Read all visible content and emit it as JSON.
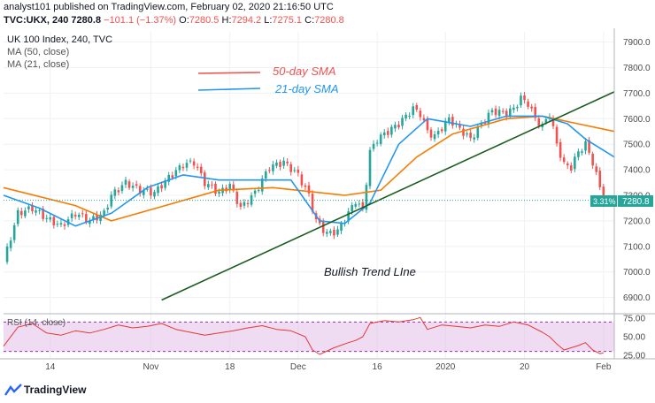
{
  "header": {
    "published": "analyst101 published on TradingView.com, February 02, 2020 21:16:50 UTC",
    "symbol": "TVC:UKX, 240",
    "last": "7280.8",
    "change": "−101.1 (−1.37%)",
    "o_label": "O:",
    "o_val": "7280.5",
    "h_label": "H:",
    "h_val": "7294.2",
    "l_label": "L:",
    "l_val": "7275.1",
    "c_label": "C:",
    "c_val": "7280.8"
  },
  "legend": {
    "title": "UK 100 Index, 240, TVC",
    "ma50": "MA (50, close)",
    "ma21": "MA (21, close)"
  },
  "annotations": {
    "sma50_label": "50-day SMA",
    "sma21_label": "21-day SMA",
    "trend_label": "Bullish Trend LIne",
    "price_badge": "7280.8",
    "pct_badge": "3.31%"
  },
  "rsi": {
    "label": "RSI (14, close)"
  },
  "footer": {
    "brand": "TradingView"
  },
  "colors": {
    "candle_up": "#26a69a",
    "candle_down": "#ef5350",
    "ma50": "#f57c00",
    "ma21": "#2196f3",
    "trend": "#1b5e20",
    "rsi_line": "#e53935",
    "rsi_band": "#e1bee7",
    "badge": "#26a69a"
  },
  "chart_data": {
    "type": "candlestick",
    "title": "UK 100 Index, 240, TVC",
    "x_ticks": [
      "14",
      "Nov",
      "18",
      "Dec",
      "16",
      "2020",
      "20",
      "Feb"
    ],
    "y_ticks": [
      6900,
      7000,
      7100,
      7200,
      7300,
      7400,
      7500,
      7600,
      7700,
      7800,
      7900
    ],
    "ylim": [
      6840,
      7940
    ],
    "rsi_ticks": [
      "25.00",
      "50.00",
      "75.00"
    ],
    "rsi_range": [
      20,
      80
    ],
    "close_path": [
      [
        0,
        7040
      ],
      [
        4,
        7230
      ],
      [
        8,
        7250
      ],
      [
        12,
        7210
      ],
      [
        16,
        7180
      ],
      [
        20,
        7230
      ],
      [
        24,
        7200
      ],
      [
        28,
        7230
      ],
      [
        30,
        7300
      ],
      [
        34,
        7350
      ],
      [
        38,
        7320
      ],
      [
        42,
        7310
      ],
      [
        46,
        7370
      ],
      [
        50,
        7420
      ],
      [
        53,
        7430
      ],
      [
        56,
        7350
      ],
      [
        60,
        7310
      ],
      [
        63,
        7340
      ],
      [
        66,
        7250
      ],
      [
        70,
        7310
      ],
      [
        74,
        7410
      ],
      [
        78,
        7430
      ],
      [
        82,
        7380
      ],
      [
        85,
        7300
      ],
      [
        87,
        7200
      ],
      [
        90,
        7150
      ],
      [
        93,
        7160
      ],
      [
        96,
        7230
      ],
      [
        98,
        7280
      ],
      [
        100,
        7240
      ],
      [
        102,
        7470
      ],
      [
        104,
        7520
      ],
      [
        108,
        7560
      ],
      [
        110,
        7580
      ],
      [
        114,
        7640
      ],
      [
        116,
        7620
      ],
      [
        118,
        7550
      ],
      [
        120,
        7530
      ],
      [
        124,
        7600
      ],
      [
        127,
        7560
      ],
      [
        130,
        7520
      ],
      [
        133,
        7580
      ],
      [
        136,
        7630
      ],
      [
        140,
        7620
      ],
      [
        142,
        7640
      ],
      [
        144,
        7680
      ],
      [
        146,
        7660
      ],
      [
        148,
        7600
      ],
      [
        150,
        7570
      ],
      [
        152,
        7620
      ],
      [
        154,
        7500
      ],
      [
        156,
        7420
      ],
      [
        158,
        7410
      ],
      [
        160,
        7470
      ],
      [
        162,
        7500
      ],
      [
        164,
        7430
      ],
      [
        166,
        7330
      ],
      [
        167,
        7280.8
      ]
    ],
    "ma50": [
      [
        0,
        7330
      ],
      [
        20,
        7260
      ],
      [
        30,
        7200
      ],
      [
        45,
        7260
      ],
      [
        60,
        7320
      ],
      [
        75,
        7330
      ],
      [
        95,
        7300
      ],
      [
        105,
        7320
      ],
      [
        115,
        7450
      ],
      [
        125,
        7540
      ],
      [
        140,
        7600
      ],
      [
        150,
        7610
      ],
      [
        160,
        7580
      ],
      [
        170,
        7550
      ]
    ],
    "ma21": [
      [
        0,
        7300
      ],
      [
        10,
        7250
      ],
      [
        20,
        7180
      ],
      [
        30,
        7230
      ],
      [
        40,
        7330
      ],
      [
        50,
        7380
      ],
      [
        60,
        7360
      ],
      [
        72,
        7360
      ],
      [
        80,
        7360
      ],
      [
        88,
        7200
      ],
      [
        95,
        7190
      ],
      [
        102,
        7270
      ],
      [
        110,
        7500
      ],
      [
        118,
        7600
      ],
      [
        130,
        7570
      ],
      [
        140,
        7610
      ],
      [
        150,
        7610
      ],
      [
        157,
        7580
      ],
      [
        162,
        7520
      ],
      [
        170,
        7450
      ]
    ],
    "trend_line": [
      [
        44,
        6890
      ],
      [
        170,
        7705
      ]
    ],
    "last_price": 7280.8,
    "rsi": [
      [
        0,
        37
      ],
      [
        4,
        63
      ],
      [
        8,
        68
      ],
      [
        12,
        55
      ],
      [
        16,
        52
      ],
      [
        20,
        58
      ],
      [
        24,
        55
      ],
      [
        28,
        60
      ],
      [
        32,
        66
      ],
      [
        36,
        62
      ],
      [
        40,
        64
      ],
      [
        44,
        68
      ],
      [
        48,
        60
      ],
      [
        52,
        56
      ],
      [
        56,
        52
      ],
      [
        60,
        55
      ],
      [
        64,
        58
      ],
      [
        68,
        62
      ],
      [
        72,
        65
      ],
      [
        76,
        60
      ],
      [
        80,
        58
      ],
      [
        84,
        50
      ],
      [
        86,
        32
      ],
      [
        88,
        26
      ],
      [
        92,
        35
      ],
      [
        96,
        42
      ],
      [
        98,
        45
      ],
      [
        100,
        50
      ],
      [
        102,
        68
      ],
      [
        106,
        72
      ],
      [
        110,
        70
      ],
      [
        114,
        73
      ],
      [
        116,
        76
      ],
      [
        118,
        60
      ],
      [
        122,
        66
      ],
      [
        126,
        64
      ],
      [
        130,
        62
      ],
      [
        134,
        66
      ],
      [
        138,
        64
      ],
      [
        142,
        70
      ],
      [
        146,
        66
      ],
      [
        150,
        56
      ],
      [
        152,
        50
      ],
      [
        154,
        40
      ],
      [
        156,
        32
      ],
      [
        160,
        38
      ],
      [
        162,
        42
      ],
      [
        164,
        32
      ],
      [
        166,
        27
      ],
      [
        167,
        28
      ]
    ]
  }
}
